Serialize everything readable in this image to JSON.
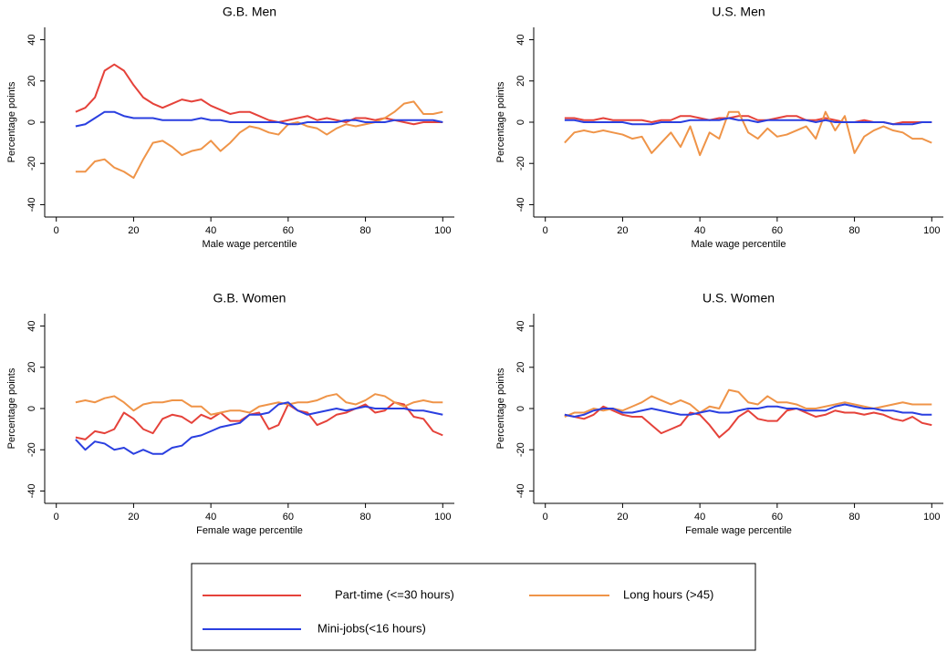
{
  "chart_data": [
    {
      "type": "line",
      "title": "G.B. Men",
      "xlabel": "Male wage percentile",
      "ylabel": "Percentage points",
      "x": [
        5,
        7.5,
        10,
        12.5,
        15,
        17.5,
        20,
        22.5,
        25,
        27.5,
        30,
        32.5,
        35,
        37.5,
        40,
        42.5,
        45,
        47.5,
        50,
        52.5,
        55,
        57.5,
        60,
        62.5,
        65,
        67.5,
        70,
        72.5,
        75,
        77.5,
        80,
        82.5,
        85,
        87.5,
        90,
        92.5,
        95,
        97.5,
        100
      ],
      "xlim": [
        -3,
        103
      ],
      "ylim": [
        -46,
        46
      ],
      "xticks": [
        0,
        20,
        40,
        60,
        80,
        100
      ],
      "yticks": [
        -40,
        -20,
        0,
        20,
        40
      ],
      "series": [
        {
          "name": "Part-time (<=30 hours)",
          "color": "#e5423a",
          "values": [
            5,
            7,
            12,
            25,
            28,
            25,
            18,
            12,
            9,
            7,
            9,
            11,
            10,
            11,
            8,
            6,
            4,
            5,
            5,
            3,
            1,
            0,
            1,
            2,
            3,
            1,
            2,
            1,
            0,
            2,
            2,
            1,
            2,
            1,
            0,
            -1,
            0,
            0,
            0
          ]
        },
        {
          "name": "Long hours (>45)",
          "color": "#ef9448",
          "values": [
            -24,
            -24,
            -19,
            -18,
            -22,
            -24,
            -27,
            -18,
            -10,
            -9,
            -12,
            -16,
            -14,
            -13,
            -9,
            -14,
            -10,
            -5,
            -2,
            -3,
            -5,
            -6,
            -1,
            0,
            -2,
            -3,
            -6,
            -3,
            -1,
            -2,
            -1,
            0,
            2,
            5,
            9,
            10,
            4,
            4,
            5
          ]
        },
        {
          "name": "Mini-jobs(<16 hours)",
          "color": "#2a3fe0",
          "values": [
            -2,
            -1,
            2,
            5,
            5,
            3,
            2,
            2,
            2,
            1,
            1,
            1,
            1,
            2,
            1,
            1,
            0,
            0,
            0,
            0,
            0,
            0,
            -1,
            -1,
            0,
            0,
            0,
            0,
            1,
            1,
            0,
            0,
            0,
            1,
            1,
            1,
            1,
            1,
            0
          ]
        }
      ]
    },
    {
      "type": "line",
      "title": "U.S. Men",
      "xlabel": "Male wage percentile",
      "ylabel": "Percentage points",
      "x": [
        5,
        7.5,
        10,
        12.5,
        15,
        17.5,
        20,
        22.5,
        25,
        27.5,
        30,
        32.5,
        35,
        37.5,
        40,
        42.5,
        45,
        47.5,
        50,
        52.5,
        55,
        57.5,
        60,
        62.5,
        65,
        67.5,
        70,
        72.5,
        75,
        77.5,
        80,
        82.5,
        85,
        87.5,
        90,
        92.5,
        95,
        97.5,
        100
      ],
      "xlim": [
        -3,
        103
      ],
      "ylim": [
        -46,
        46
      ],
      "xticks": [
        0,
        20,
        40,
        60,
        80,
        100
      ],
      "yticks": [
        -40,
        -20,
        0,
        20,
        40
      ],
      "series": [
        {
          "color": "#e5423a",
          "values": [
            2,
            2,
            1,
            1,
            2,
            1,
            1,
            1,
            1,
            0,
            1,
            1,
            3,
            3,
            2,
            1,
            2,
            2,
            3,
            3,
            1,
            1,
            2,
            3,
            3,
            1,
            1,
            2,
            1,
            0,
            0,
            1,
            0,
            0,
            -1,
            0,
            0,
            0,
            0
          ]
        },
        {
          "color": "#ef9448",
          "values": [
            -10,
            -5,
            -4,
            -5,
            -4,
            -5,
            -6,
            -8,
            -7,
            -15,
            -10,
            -5,
            -12,
            -2,
            -16,
            -5,
            -8,
            5,
            5,
            -5,
            -8,
            -3,
            -7,
            -6,
            -4,
            -2,
            -8,
            5,
            -4,
            3,
            -15,
            -7,
            -4,
            -2,
            -4,
            -5,
            -8,
            -8,
            -10
          ]
        },
        {
          "color": "#2a3fe0",
          "values": [
            1,
            1,
            0,
            0,
            0,
            0,
            0,
            -1,
            -1,
            -1,
            0,
            0,
            0,
            1,
            1,
            1,
            1,
            2,
            1,
            1,
            0,
            1,
            1,
            1,
            1,
            1,
            0,
            1,
            0,
            0,
            0,
            0,
            0,
            0,
            -1,
            -1,
            -1,
            0,
            0
          ]
        }
      ]
    },
    {
      "type": "line",
      "title": "G.B. Women",
      "xlabel": "Female wage percentile",
      "ylabel": "Percentage points",
      "x": [
        5,
        7.5,
        10,
        12.5,
        15,
        17.5,
        20,
        22.5,
        25,
        27.5,
        30,
        32.5,
        35,
        37.5,
        40,
        42.5,
        45,
        47.5,
        50,
        52.5,
        55,
        57.5,
        60,
        62.5,
        65,
        67.5,
        70,
        72.5,
        75,
        77.5,
        80,
        82.5,
        85,
        87.5,
        90,
        92.5,
        95,
        97.5,
        100
      ],
      "xlim": [
        -3,
        103
      ],
      "ylim": [
        -46,
        46
      ],
      "xticks": [
        0,
        20,
        40,
        60,
        80,
        100
      ],
      "yticks": [
        -40,
        -20,
        0,
        20,
        40
      ],
      "series": [
        {
          "color": "#e5423a",
          "values": [
            -14,
            -15,
            -11,
            -12,
            -10,
            -2,
            -5,
            -10,
            -12,
            -5,
            -3,
            -4,
            -7,
            -3,
            -5,
            -2,
            -6,
            -6,
            -3,
            -2,
            -10,
            -8,
            2,
            -1,
            -2,
            -8,
            -6,
            -3,
            -2,
            0,
            2,
            -2,
            -1,
            3,
            2,
            -4,
            -5,
            -11,
            -13
          ]
        },
        {
          "color": "#ef9448",
          "values": [
            3,
            4,
            3,
            5,
            6,
            3,
            -1,
            2,
            3,
            3,
            4,
            4,
            1,
            1,
            -3,
            -2,
            -1,
            -1,
            -2,
            1,
            2,
            3,
            2,
            3,
            3,
            4,
            6,
            7,
            3,
            2,
            4,
            7,
            6,
            3,
            1,
            3,
            4,
            3,
            3
          ]
        },
        {
          "color": "#2a3fe0",
          "values": [
            -15,
            -20,
            -16,
            -17,
            -20,
            -19,
            -22,
            -20,
            -22,
            -22,
            -19,
            -18,
            -14,
            -13,
            -11,
            -9,
            -8,
            -7,
            -3,
            -3,
            -2,
            2,
            3,
            -1,
            -3,
            -2,
            -1,
            0,
            -1,
            0,
            1,
            0,
            0,
            0,
            0,
            -1,
            -1,
            -2,
            -3
          ]
        }
      ]
    },
    {
      "type": "line",
      "title": "U.S. Women",
      "xlabel": "Female wage percentile",
      "ylabel": "Percentage points",
      "x": [
        5,
        7.5,
        10,
        12.5,
        15,
        17.5,
        20,
        22.5,
        25,
        27.5,
        30,
        32.5,
        35,
        37.5,
        40,
        42.5,
        45,
        47.5,
        50,
        52.5,
        55,
        57.5,
        60,
        62.5,
        65,
        67.5,
        70,
        72.5,
        75,
        77.5,
        80,
        82.5,
        85,
        87.5,
        90,
        92.5,
        95,
        97.5,
        100
      ],
      "xlim": [
        -3,
        103
      ],
      "ylim": [
        -46,
        46
      ],
      "xticks": [
        0,
        20,
        40,
        60,
        80,
        100
      ],
      "yticks": [
        -40,
        -20,
        0,
        20,
        40
      ],
      "series": [
        {
          "color": "#e5423a",
          "values": [
            -3,
            -4,
            -5,
            -3,
            1,
            -1,
            -3,
            -4,
            -4,
            -8,
            -12,
            -10,
            -8,
            -2,
            -3,
            -8,
            -14,
            -10,
            -4,
            -1,
            -5,
            -6,
            -6,
            -1,
            0,
            -2,
            -4,
            -3,
            -1,
            -2,
            -2,
            -3,
            -2,
            -3,
            -5,
            -6,
            -4,
            -7,
            -8
          ]
        },
        {
          "color": "#ef9448",
          "values": [
            -4,
            -2,
            -2,
            0,
            -1,
            0,
            -1,
            1,
            3,
            6,
            4,
            2,
            4,
            2,
            -2,
            1,
            0,
            9,
            8,
            3,
            2,
            6,
            3,
            3,
            2,
            0,
            0,
            1,
            2,
            3,
            2,
            1,
            0,
            1,
            2,
            3,
            2,
            2,
            2
          ]
        },
        {
          "color": "#2a3fe0",
          "values": [
            -3,
            -4,
            -3,
            -1,
            0,
            0,
            -2,
            -2,
            -1,
            0,
            -1,
            -2,
            -3,
            -3,
            -2,
            -1,
            -2,
            -2,
            -1,
            0,
            0,
            1,
            1,
            0,
            0,
            -1,
            -1,
            -1,
            1,
            2,
            1,
            0,
            0,
            -1,
            -1,
            -2,
            -2,
            -3,
            -3
          ]
        }
      ]
    }
  ]
}
